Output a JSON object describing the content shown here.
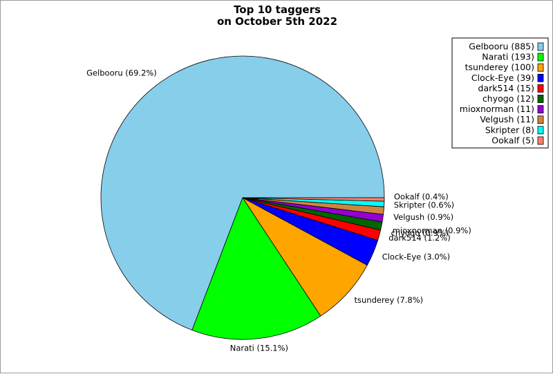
{
  "chart_data": {
    "type": "pie",
    "title_lines": [
      "Top 10 taggers",
      "on October 5th 2022"
    ],
    "slices": [
      {
        "name": "Gelbooru",
        "value": 885,
        "percent_label": "Gelbooru (69.2%)",
        "legend_label": "Gelbooru (885)",
        "color": "#87ceeb"
      },
      {
        "name": "Narati",
        "value": 193,
        "percent_label": "Narati (15.1%)",
        "legend_label": "Narati (193)",
        "color": "#00ff00"
      },
      {
        "name": "tsunderey",
        "value": 100,
        "percent_label": "tsunderey (7.8%)",
        "legend_label": "tsunderey (100)",
        "color": "#ffa500"
      },
      {
        "name": "Clock-Eye",
        "value": 39,
        "percent_label": "Clock-Eye (3.0%)",
        "legend_label": "Clock-Eye (39)",
        "color": "#0000ff"
      },
      {
        "name": "dark514",
        "value": 15,
        "percent_label": "dark514 (1.2%)",
        "legend_label": "dark514 (15)",
        "color": "#ff0000"
      },
      {
        "name": "chyogo",
        "value": 12,
        "percent_label": "chyogo (0.9%)",
        "legend_label": "chyogo (12)",
        "color": "#006400"
      },
      {
        "name": "mioxnorman",
        "value": 11,
        "percent_label": "mioxnorman (0.9%)",
        "legend_label": "mioxnorman (11)",
        "color": "#9400d3"
      },
      {
        "name": "Velgush",
        "value": 11,
        "percent_label": "Velgush (0.9%)",
        "legend_label": "Velgush (11)",
        "color": "#cd853f"
      },
      {
        "name": "Skripter",
        "value": 8,
        "percent_label": "Skripter (0.6%)",
        "legend_label": "Skripter (8)",
        "color": "#00ffff"
      },
      {
        "name": "Ookalf",
        "value": 5,
        "percent_label": "Ookalf (0.4%)",
        "legend_label": "Ookalf (5)",
        "color": "#fa8072"
      }
    ],
    "start_angle_deg": 0,
    "direction": "counterclockwise",
    "legend_position": "top-right"
  }
}
